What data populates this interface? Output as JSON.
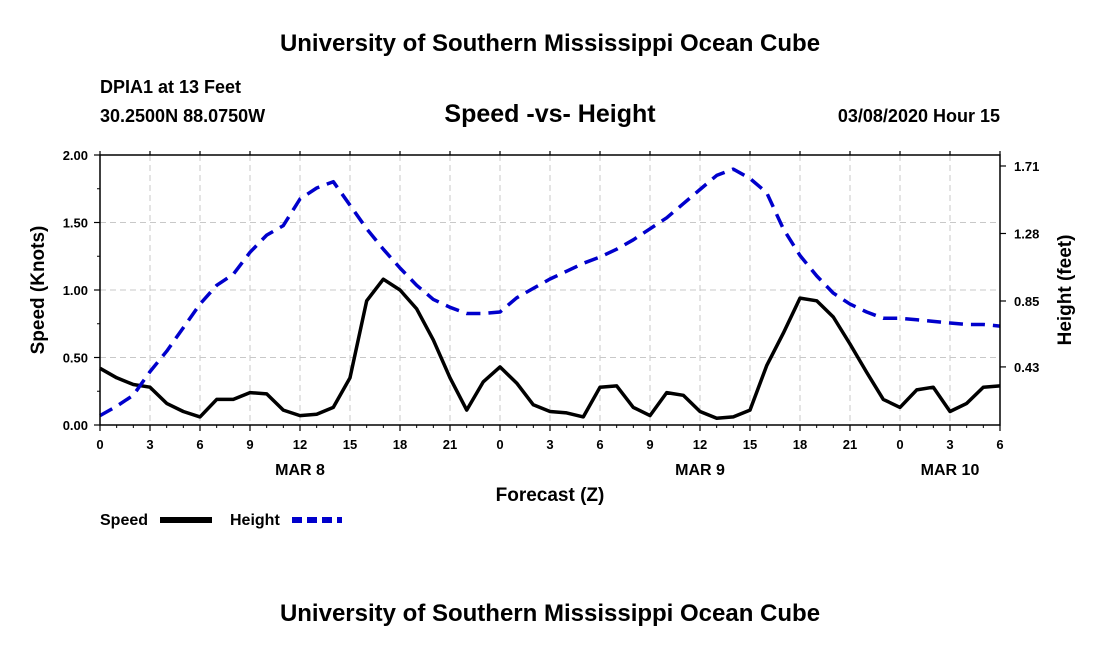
{
  "header": {
    "title": "University of Southern Mississippi Ocean Cube",
    "station": "DPIA1 at 13 Feet",
    "coords": "30.2500N 88.0750W",
    "datetime": "03/08/2020 Hour 15"
  },
  "footer": {
    "title": "University of Southern Mississippi Ocean Cube"
  },
  "chart_data": {
    "type": "line",
    "title": "Speed -vs- Height",
    "xlabel": "Forecast (Z)",
    "ylabel": "Speed (Knots)",
    "y2label": "Height (feet)",
    "xlim": [
      0,
      54
    ],
    "ylim": [
      0,
      2.0
    ],
    "y2lim": [
      0.06,
      1.78
    ],
    "grid": true,
    "x_ticks": [
      0,
      3,
      6,
      9,
      12,
      15,
      18,
      21,
      24,
      27,
      30,
      33,
      36,
      39,
      42,
      45,
      48,
      51,
      54
    ],
    "x_tick_labels": [
      "0",
      "3",
      "6",
      "9",
      "12",
      "15",
      "18",
      "21",
      "0",
      "3",
      "6",
      "9",
      "12",
      "15",
      "18",
      "21",
      "0",
      "3",
      "6"
    ],
    "y_ticks": [
      0,
      0.5,
      1.0,
      1.5,
      2.0
    ],
    "y_tick_labels": [
      "0.00",
      "0.50",
      "1.00",
      "1.50",
      "2.00"
    ],
    "y2_ticks": [
      0.43,
      0.85,
      1.28,
      1.71
    ],
    "y2_tick_labels": [
      "0.43",
      "0.85",
      "1.28",
      "1.71"
    ],
    "date_labels": [
      {
        "x": 12,
        "label": "MAR 8"
      },
      {
        "x": 36,
        "label": "MAR 9"
      },
      {
        "x": 51,
        "label": "MAR 10"
      }
    ],
    "series": [
      {
        "name": "Speed",
        "axis": "left",
        "color": "#000000",
        "style": "solid",
        "x": [
          0,
          1,
          2,
          3,
          4,
          5,
          6,
          7,
          8,
          9,
          10,
          11,
          12,
          13,
          14,
          15,
          16,
          17,
          18,
          19,
          20,
          21,
          22,
          23,
          24,
          25,
          26,
          27,
          28,
          29,
          30,
          31,
          32,
          33,
          34,
          35,
          36,
          37,
          38,
          39,
          40,
          41,
          42,
          43,
          44,
          45,
          46,
          47,
          48,
          49,
          50,
          51,
          52,
          53,
          54
        ],
        "values": [
          0.42,
          0.35,
          0.3,
          0.28,
          0.16,
          0.1,
          0.06,
          0.19,
          0.19,
          0.24,
          0.23,
          0.11,
          0.07,
          0.08,
          0.13,
          0.35,
          0.92,
          1.08,
          1.0,
          0.86,
          0.63,
          0.35,
          0.11,
          0.32,
          0.43,
          0.31,
          0.15,
          0.1,
          0.09,
          0.06,
          0.28,
          0.29,
          0.13,
          0.07,
          0.24,
          0.22,
          0.1,
          0.05,
          0.06,
          0.11,
          0.44,
          0.68,
          0.94,
          0.92,
          0.8,
          0.6,
          0.39,
          0.19,
          0.13,
          0.26,
          0.28,
          0.1,
          0.16,
          0.28,
          0.29
        ]
      },
      {
        "name": "Height",
        "axis": "right",
        "color": "#0000cc",
        "style": "dashed",
        "x": [
          0,
          1,
          2,
          3,
          4,
          5,
          6,
          7,
          8,
          9,
          10,
          11,
          12,
          13,
          14,
          15,
          16,
          17,
          18,
          19,
          20,
          21,
          22,
          23,
          24,
          25,
          26,
          27,
          28,
          29,
          30,
          31,
          32,
          33,
          34,
          35,
          36,
          37,
          38,
          39,
          40,
          41,
          42,
          43,
          44,
          45,
          46,
          47,
          48,
          49,
          50,
          51,
          52,
          53,
          54
        ],
        "values": [
          0.12,
          0.18,
          0.25,
          0.4,
          0.53,
          0.68,
          0.83,
          0.95,
          1.02,
          1.16,
          1.27,
          1.33,
          1.5,
          1.57,
          1.61,
          1.46,
          1.31,
          1.18,
          1.06,
          0.95,
          0.86,
          0.81,
          0.77,
          0.77,
          0.78,
          0.87,
          0.93,
          0.99,
          1.04,
          1.09,
          1.13,
          1.18,
          1.24,
          1.31,
          1.38,
          1.47,
          1.56,
          1.65,
          1.69,
          1.63,
          1.54,
          1.31,
          1.14,
          1.01,
          0.9,
          0.83,
          0.78,
          0.74,
          0.74,
          0.73,
          0.72,
          0.71,
          0.7,
          0.7,
          0.69
        ]
      }
    ],
    "legend": [
      {
        "label": "Speed",
        "color": "#000000",
        "style": "solid"
      },
      {
        "label": "Height",
        "color": "#0000cc",
        "style": "dashed"
      }
    ]
  }
}
